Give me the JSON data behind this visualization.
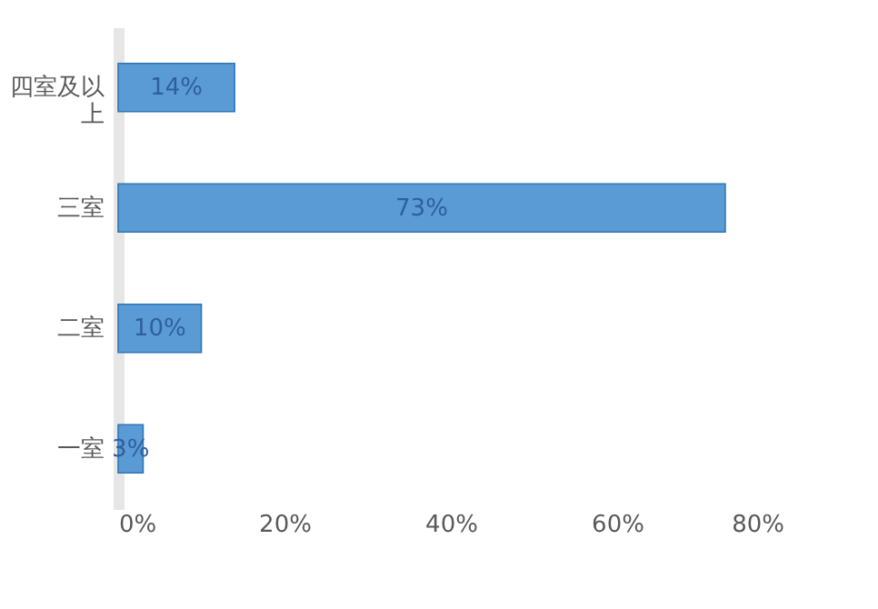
{
  "chart_data": {
    "type": "bar",
    "orientation": "horizontal",
    "categories": [
      "四室及以上",
      "三室",
      "二室",
      "一室"
    ],
    "values": [
      14,
      73,
      10,
      3
    ],
    "value_labels": [
      "14%",
      "73%",
      "10%",
      "3%"
    ],
    "color": "#5b9bd5",
    "xlim": [
      0,
      80
    ],
    "xticks": [
      {
        "value": 0,
        "label": "0%"
      },
      {
        "value": 20,
        "label": "20%"
      },
      {
        "value": 40,
        "label": "40%"
      },
      {
        "value": 60,
        "label": "60%"
      },
      {
        "value": 80,
        "label": "80%"
      }
    ],
    "grid": false
  }
}
